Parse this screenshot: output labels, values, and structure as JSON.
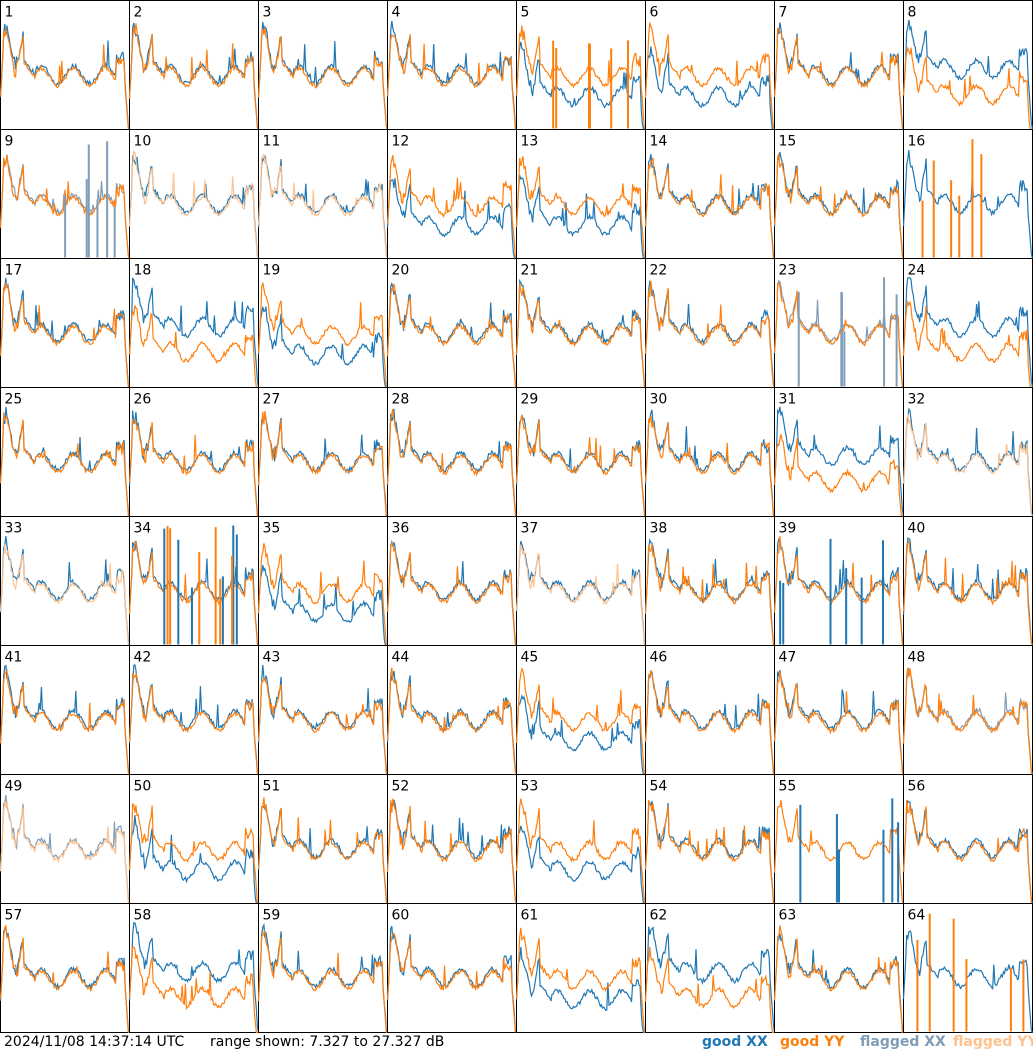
{
  "footer": {
    "timestamp": "2024/11/08 14:37:14 UTC",
    "range": "range shown: 7.327 to 27.327 dB"
  },
  "legend": {
    "good_label": "good",
    "flagged_label": "flagged",
    "xx": "XX",
    "yy": "YY"
  },
  "colors": {
    "good_xx": "#1f77b4",
    "good_yy": "#ff7f0e",
    "flagged_xx": "#7f9db8",
    "flagged_yy": "#ffc28f"
  },
  "chart_data": {
    "type": "line",
    "panels": 64,
    "grid_rows": 8,
    "grid_cols": 8,
    "panel_labels": [
      "1",
      "2",
      "3",
      "4",
      "5",
      "6",
      "7",
      "8",
      "9",
      "10",
      "11",
      "12",
      "13",
      "14",
      "15",
      "16",
      "17",
      "18",
      "19",
      "20",
      "21",
      "22",
      "23",
      "24",
      "25",
      "26",
      "27",
      "28",
      "29",
      "30",
      "31",
      "32",
      "33",
      "34",
      "35",
      "36",
      "37",
      "38",
      "39",
      "40",
      "41",
      "42",
      "43",
      "44",
      "45",
      "46",
      "47",
      "48",
      "49",
      "50",
      "51",
      "52",
      "53",
      "54",
      "55",
      "56",
      "57",
      "58",
      "59",
      "60",
      "61",
      "62",
      "63",
      "64"
    ],
    "ylim": [
      7.327,
      27.327
    ],
    "unit": "dB",
    "series": [
      {
        "name": "good XX"
      },
      {
        "name": "good YY"
      },
      {
        "name": "flagged XX"
      },
      {
        "name": "flagged YY"
      }
    ],
    "flagged_xx_panels": [
      9,
      23,
      48,
      49
    ],
    "flagged_yy_panels": [
      10,
      11,
      32,
      33,
      37,
      49
    ],
    "xx_below_panels": [
      5,
      6,
      12,
      13,
      19,
      35,
      45,
      50,
      53,
      61
    ],
    "yy_below_panels": [
      8,
      18,
      24,
      31,
      58,
      62
    ],
    "spike_panels_xx": [
      9,
      23,
      34,
      39,
      55
    ],
    "spike_panels_yy": [
      5,
      16,
      34,
      64
    ],
    "only_xx_panels": [
      16,
      64
    ],
    "only_yy_panels": [
      55
    ]
  }
}
